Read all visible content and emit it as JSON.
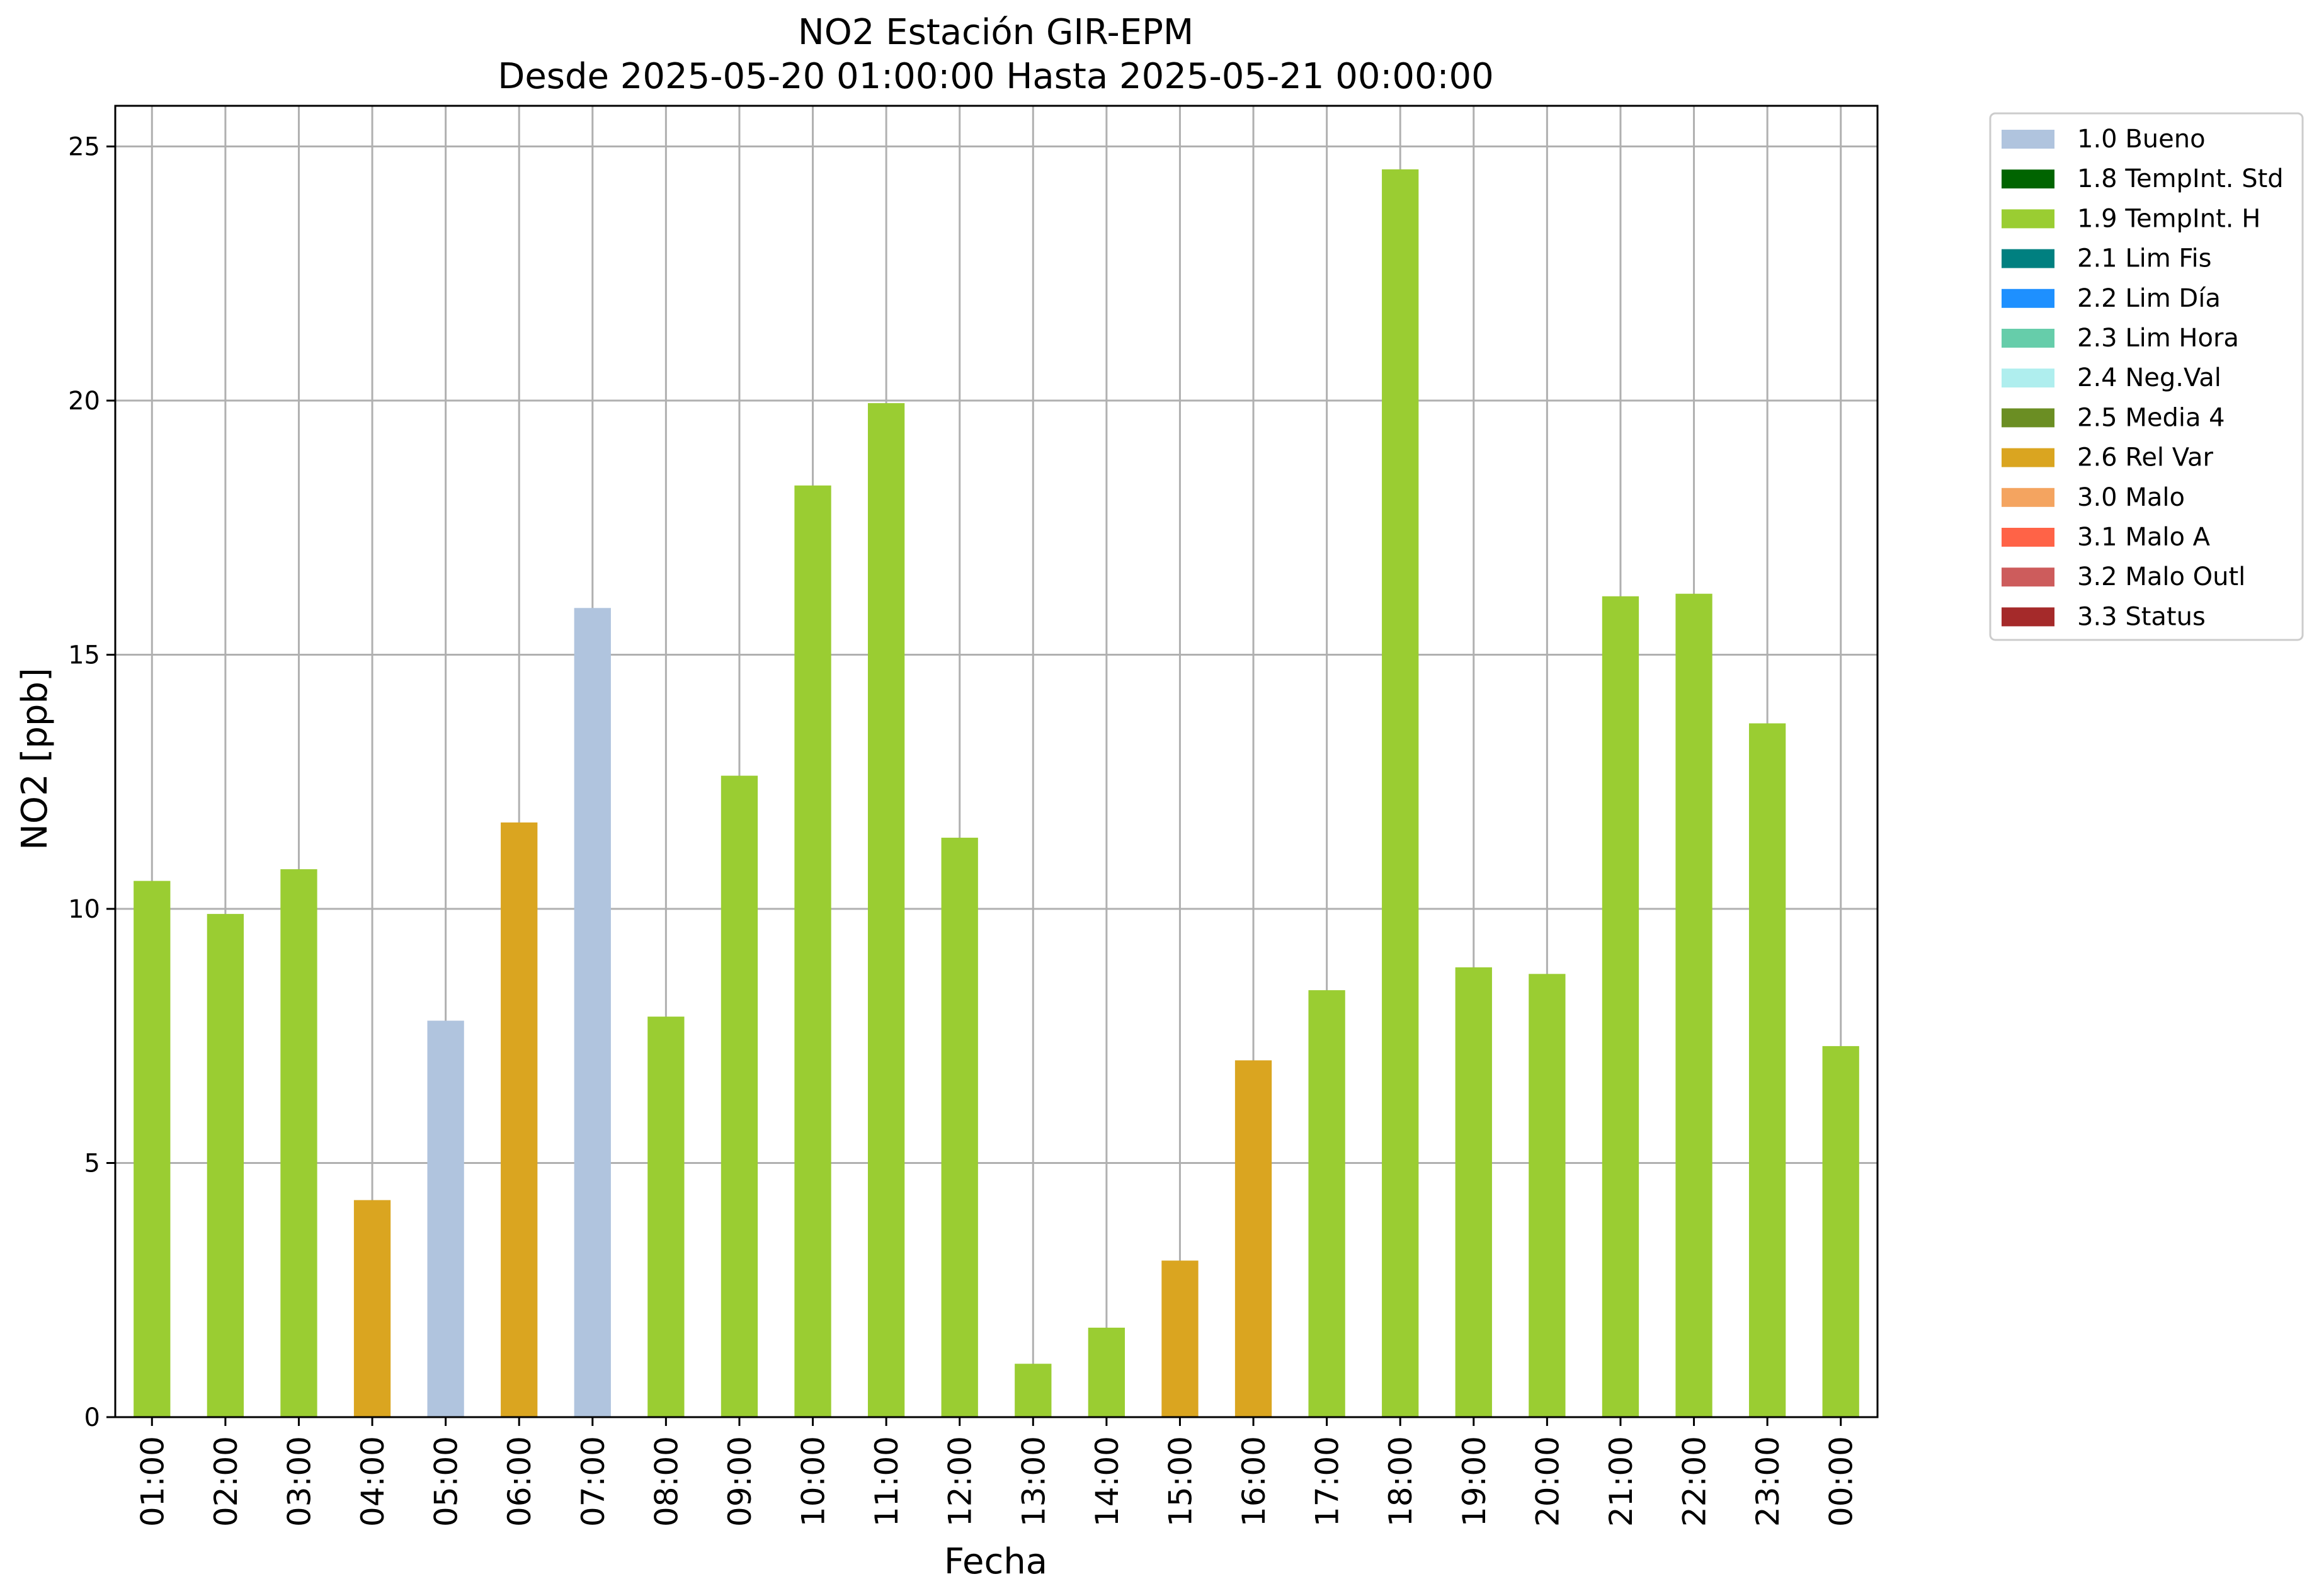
{
  "chart_data": {
    "type": "bar",
    "title": "NO2 Estación GIR-EPM",
    "subtitle": "Desde 2025-05-20 01:00:00 Hasta 2025-05-21 00:00:00",
    "xlabel": "Fecha",
    "ylabel": "NO2 [ppb]",
    "ylim": [
      0,
      25.8
    ],
    "yticks": [
      0,
      5,
      10,
      15,
      20,
      25
    ],
    "grid": true,
    "legend_position": "outside-top-right",
    "categories": [
      "01:00",
      "02:00",
      "03:00",
      "04:00",
      "05:00",
      "06:00",
      "07:00",
      "08:00",
      "09:00",
      "10:00",
      "11:00",
      "12:00",
      "13:00",
      "14:00",
      "15:00",
      "16:00",
      "17:00",
      "18:00",
      "19:00",
      "20:00",
      "21:00",
      "22:00",
      "23:00",
      "00:00"
    ],
    "values": [
      10.55,
      9.9,
      10.78,
      4.27,
      7.8,
      11.7,
      15.92,
      7.88,
      12.62,
      18.33,
      19.95,
      11.4,
      1.05,
      1.76,
      3.08,
      7.02,
      8.4,
      24.55,
      8.85,
      8.72,
      16.15,
      16.2,
      13.65,
      7.3
    ],
    "flags": [
      "1.9 TempInt. H",
      "1.9 TempInt. H",
      "1.9 TempInt. H",
      "2.6 Rel Var",
      "1.0 Bueno",
      "2.6 Rel Var",
      "1.0 Bueno",
      "1.9 TempInt. H",
      "1.9 TempInt. H",
      "1.9 TempInt. H",
      "1.9 TempInt. H",
      "1.9 TempInt. H",
      "1.9 TempInt. H",
      "1.9 TempInt. H",
      "2.6 Rel Var",
      "2.6 Rel Var",
      "1.9 TempInt. H",
      "1.9 TempInt. H",
      "1.9 TempInt. H",
      "1.9 TempInt. H",
      "1.9 TempInt. H",
      "1.9 TempInt. H",
      "1.9 TempInt. H",
      "1.9 TempInt. H"
    ],
    "legend": [
      {
        "label": "1.0 Bueno",
        "color": "#b0c4de"
      },
      {
        "label": "1.8 TempInt. Std",
        "color": "#006400"
      },
      {
        "label": "1.9 TempInt. H",
        "color": "#9acd32"
      },
      {
        "label": "2.1 Lim Fis",
        "color": "#008080"
      },
      {
        "label": "2.2 Lim Día",
        "color": "#1e90ff"
      },
      {
        "label": "2.3 Lim Hora",
        "color": "#66cdaa"
      },
      {
        "label": "2.4 Neg.Val",
        "color": "#afeeee"
      },
      {
        "label": "2.5 Media 4",
        "color": "#6b8e23"
      },
      {
        "label": "2.6 Rel Var",
        "color": "#daa520"
      },
      {
        "label": "3.0 Malo",
        "color": "#f4a460"
      },
      {
        "label": "3.1 Malo A",
        "color": "#ff6347"
      },
      {
        "label": "3.2 Malo Outl",
        "color": "#cd5c5c"
      },
      {
        "label": "3.3 Status",
        "color": "#a52a2a"
      }
    ]
  }
}
